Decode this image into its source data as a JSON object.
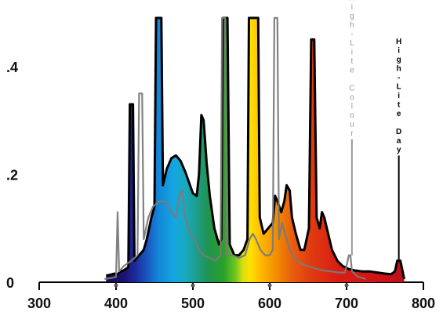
{
  "chart_data": {
    "type": "area",
    "xlim": [
      300,
      800
    ],
    "ylim": [
      0,
      0.5
    ],
    "x_ticks": [
      300,
      400,
      500,
      600,
      700,
      800
    ],
    "x_tick_labels": [
      "300",
      "400",
      "500",
      "600",
      "700",
      "800"
    ],
    "y_ticks": [
      0,
      0.2,
      0.4
    ],
    "y_tick_labels": [
      "0",
      ".2",
      ".4"
    ],
    "grid": false,
    "series": [
      {
        "name": "High-Lite Day",
        "color": "#000000",
        "fill": "spectrum",
        "points": [
          [
            387,
            0.012
          ],
          [
            398,
            0.016
          ],
          [
            402,
            0.014
          ],
          [
            405,
            0.02
          ],
          [
            410,
            0.022
          ],
          [
            416,
            0.028
          ],
          [
            418,
            0.33
          ],
          [
            422,
            0.33
          ],
          [
            424,
            0.04
          ],
          [
            430,
            0.05
          ],
          [
            436,
            0.06
          ],
          [
            440,
            0.08
          ],
          [
            446,
            0.12
          ],
          [
            450,
            0.14
          ],
          [
            452,
            0.49
          ],
          [
            459,
            0.49
          ],
          [
            461,
            0.18
          ],
          [
            466,
            0.21
          ],
          [
            472,
            0.23
          ],
          [
            478,
            0.235
          ],
          [
            484,
            0.225
          ],
          [
            490,
            0.205
          ],
          [
            495,
            0.185
          ],
          [
            500,
            0.165
          ],
          [
            505,
            0.16
          ],
          [
            508,
            0.2
          ],
          [
            511,
            0.31
          ],
          [
            514,
            0.3
          ],
          [
            518,
            0.22
          ],
          [
            522,
            0.16
          ],
          [
            528,
            0.1
          ],
          [
            534,
            0.07
          ],
          [
            537,
            0.08
          ],
          [
            539,
            0.49
          ],
          [
            545,
            0.49
          ],
          [
            548,
            0.07
          ],
          [
            554,
            0.05
          ],
          [
            560,
            0.05
          ],
          [
            566,
            0.06
          ],
          [
            571,
            0.08
          ],
          [
            573,
            0.49
          ],
          [
            585,
            0.49
          ],
          [
            587,
            0.12
          ],
          [
            592,
            0.09
          ],
          [
            598,
            0.1
          ],
          [
            604,
            0.11
          ],
          [
            607,
            0.16
          ],
          [
            610,
            0.15
          ],
          [
            615,
            0.13
          ],
          [
            619,
            0.15
          ],
          [
            622,
            0.18
          ],
          [
            626,
            0.17
          ],
          [
            629,
            0.12
          ],
          [
            634,
            0.09
          ],
          [
            640,
            0.06
          ],
          [
            645,
            0.06
          ],
          [
            651,
            0.1
          ],
          [
            654,
            0.45
          ],
          [
            658,
            0.45
          ],
          [
            661,
            0.12
          ],
          [
            665,
            0.1
          ],
          [
            668,
            0.13
          ],
          [
            671,
            0.12
          ],
          [
            676,
            0.09
          ],
          [
            681,
            0.06
          ],
          [
            688,
            0.04
          ],
          [
            695,
            0.03
          ],
          [
            702,
            0.025
          ],
          [
            710,
            0.022
          ],
          [
            720,
            0.02
          ],
          [
            730,
            0.02
          ],
          [
            740,
            0.018
          ],
          [
            750,
            0.016
          ],
          [
            758,
            0.015
          ],
          [
            763,
            0.02
          ],
          [
            766,
            0.04
          ],
          [
            770,
            0.04
          ],
          [
            773,
            0.02
          ],
          [
            775,
            0.006
          ]
        ]
      },
      {
        "name": "High-Lite Colour",
        "color": "#7a7a7a",
        "fill": "none",
        "points": [
          [
            385,
            0.006
          ],
          [
            395,
            0.008
          ],
          [
            400,
            0.01
          ],
          [
            402,
            0.13
          ],
          [
            404,
            0.02
          ],
          [
            410,
            0.03
          ],
          [
            420,
            0.04
          ],
          [
            428,
            0.05
          ],
          [
            430,
            0.35
          ],
          [
            434,
            0.35
          ],
          [
            436,
            0.08
          ],
          [
            442,
            0.12
          ],
          [
            448,
            0.14
          ],
          [
            456,
            0.15
          ],
          [
            464,
            0.15
          ],
          [
            472,
            0.13
          ],
          [
            478,
            0.12
          ],
          [
            482,
            0.16
          ],
          [
            486,
            0.17
          ],
          [
            490,
            0.12
          ],
          [
            496,
            0.09
          ],
          [
            502,
            0.08
          ],
          [
            508,
            0.06
          ],
          [
            514,
            0.05
          ],
          [
            522,
            0.045
          ],
          [
            530,
            0.04
          ],
          [
            536,
            0.05
          ],
          [
            538,
            0.49
          ],
          [
            542,
            0.49
          ],
          [
            544,
            0.05
          ],
          [
            552,
            0.05
          ],
          [
            560,
            0.045
          ],
          [
            568,
            0.05
          ],
          [
            574,
            0.08
          ],
          [
            578,
            0.09
          ],
          [
            582,
            0.08
          ],
          [
            588,
            0.06
          ],
          [
            594,
            0.05
          ],
          [
            600,
            0.05
          ],
          [
            604,
            0.06
          ],
          [
            606,
            0.49
          ],
          [
            610,
            0.49
          ],
          [
            612,
            0.08
          ],
          [
            616,
            0.11
          ],
          [
            620,
            0.09
          ],
          [
            626,
            0.06
          ],
          [
            632,
            0.045
          ],
          [
            640,
            0.035
          ],
          [
            650,
            0.03
          ],
          [
            660,
            0.025
          ],
          [
            670,
            0.022
          ],
          [
            680,
            0.02
          ],
          [
            690,
            0.018
          ],
          [
            698,
            0.018
          ],
          [
            700,
            0.03
          ],
          [
            703,
            0.05
          ],
          [
            705,
            0.05
          ],
          [
            707,
            0.02
          ],
          [
            715,
            0.01
          ],
          [
            725,
            0.006
          ]
        ]
      }
    ],
    "annotations": [
      {
        "text": "High-Lite Colour",
        "x": 707,
        "y_from": 0.05,
        "y_to": 0.265,
        "color": "#999999",
        "orientation": "vertical-stacked"
      },
      {
        "text": "High-Lite Day",
        "x": 768,
        "y_from": 0.04,
        "y_to": 0.235,
        "color": "#000000",
        "orientation": "vertical-stacked"
      }
    ]
  }
}
